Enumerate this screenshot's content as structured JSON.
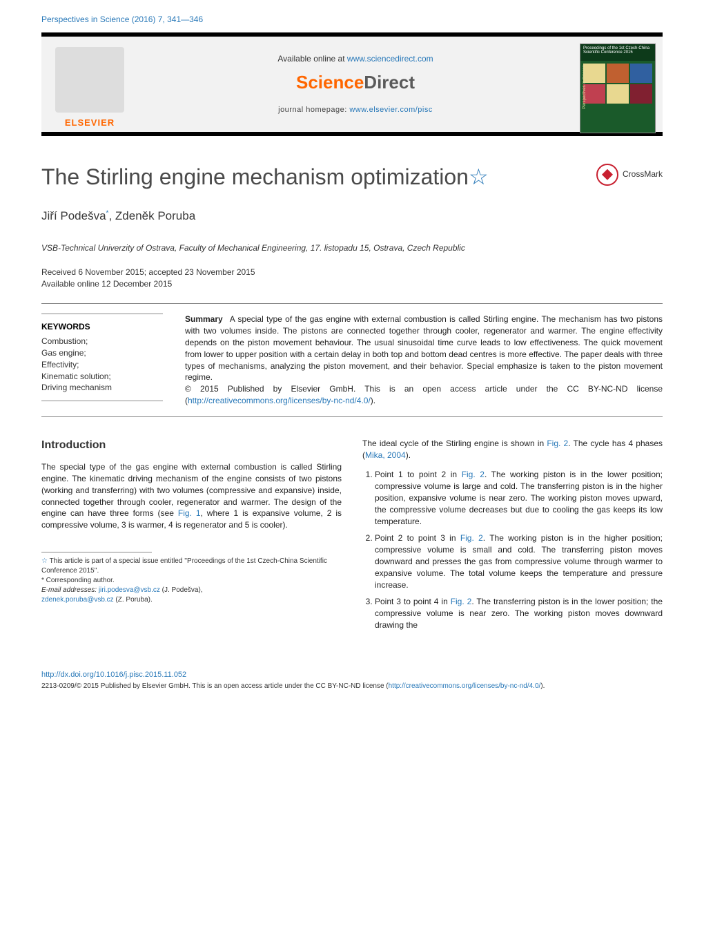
{
  "header": {
    "citation": "Perspectives in Science (2016) 7, 341—346",
    "citation_color": "#2878b8"
  },
  "banner": {
    "available_prefix": "Available online at ",
    "available_link": "www.sciencedirect.com",
    "sd_sci": "Science",
    "sd_dir": "Direct",
    "homepage_label": "journal homepage: ",
    "homepage_link": "www.elsevier.com/pisc",
    "elsevier": "ELSEVIER",
    "cover_title": "Proceedings of the 1st Czech-China Scientific Conference 2015",
    "cover_side": "Perspectives in Science"
  },
  "title": {
    "main": "The Stirling engine mechanism optimization",
    "star": "☆"
  },
  "crossmark": "CrossMark",
  "authors": {
    "a1": "Jiří Podešva",
    "a1_sup": "*",
    "a2": "Zdeněk Poruba"
  },
  "affiliation": "VSB-Technical Univerzity of Ostrava, Faculty of Mechanical Engineering, 17. listopadu 15, Ostrava, Czech Republic",
  "dates": {
    "received": "Received 6 November 2015; accepted 23 November 2015",
    "online": "Available online 12 December 2015"
  },
  "keywords": {
    "head": "KEYWORDS",
    "items": "Combustion;\nGas engine;\nEffectivity;\nKinematic solution;\nDriving mechanism"
  },
  "abstract": {
    "head": "Summary",
    "body": "A special type of the gas engine with external combustion is called Stirling engine. The mechanism has two pistons with two volumes inside. The pistons are connected together through cooler, regenerator and warmer. The engine effectivity depends on the piston movement behaviour. The usual sinusoidal time curve leads to low effectiveness. The quick movement from lower to upper position with a certain delay in both top and bottom dead centres is more effective. The paper deals with three types of mechanisms, analyzing the piston movement, and their behavior. Special emphasize is taken to the piston movement regime.",
    "copyright": "© 2015 Published by Elsevier GmbH. This is an open access article under the CC BY-NC-ND license (",
    "license_link": "http://creativecommons.org/licenses/by-nc-nd/4.0/",
    "license_close": ")."
  },
  "intro": {
    "head": "Introduction",
    "p1a": "The special type of the gas engine with external combustion is called Stirling engine. The kinematic driving mechanism of the engine consists of two pistons (working and transferring) with two volumes (compressive and expansive) inside, connected together through cooler, regenerator and warmer. The design of the engine can have three forms (see ",
    "fig1": "Fig. 1",
    "p1b": ", where 1 is expansive volume, 2 is compressive volume, 3 is warmer, 4 is regenerator and 5 is cooler)."
  },
  "right": {
    "p1a": "The ideal cycle of the Stirling engine is shown in ",
    "fig2": "Fig. 2",
    "p1b": ". The cycle has 4 phases (",
    "ref": "Mika, 2004",
    "p1c": ").",
    "phase1a": "Point 1 to point 2 in ",
    "phase1b": ". The working piston is in the lower position; compressive volume is large and cold. The transferring piston is in the higher position, expansive volume is near zero. The working piston moves upward, the compressive volume decreases but due to cooling the gas keeps its low temperature.",
    "phase2a": "Point 2 to point 3 in ",
    "phase2b": ". The working piston is in the higher position; compressive volume is small and cold. The transferring piston moves downward and presses the gas from compressive volume through warmer to expansive volume. The total volume keeps the temperature and pressure increase.",
    "phase3a": "Point 3 to point 4 in ",
    "phase3b": ". The transferring piston is in the lower position; the compressive volume is near zero. The working piston moves downward drawing the"
  },
  "footnotes": {
    "star": "☆",
    "star_text": " This article is part of a special issue entitled ''Proceedings of the 1st Czech-China Scientific Conference 2015''.",
    "corr_mark": "*",
    "corr_text": " Corresponding author.",
    "email_label": "E-mail addresses: ",
    "email1": "jiri.podesva@vsb.cz",
    "email1_who": " (J. Podešva),",
    "email2": "zdenek.poruba@vsb.cz",
    "email2_who": " (Z. Poruba)."
  },
  "footer": {
    "doi": "http://dx.doi.org/10.1016/j.pisc.2015.11.052",
    "copy": "2213-0209/© 2015 Published by Elsevier GmbH. This is an open access article under the CC BY-NC-ND license (",
    "copy_link": "http://creativecommons.org/licenses/by-nc-nd/4.0/",
    "copy_close": ")."
  },
  "colors": {
    "link": "#2878b8",
    "elsevier_orange": "#ff6600",
    "crossmark_red": "#c82030",
    "title_gray": "#4a4a4a",
    "cover_green": "#1a5a2a"
  },
  "typography": {
    "title_fontsize": 32,
    "authors_fontsize": 17,
    "body_fontsize": 12,
    "section_head_fontsize": 16
  }
}
